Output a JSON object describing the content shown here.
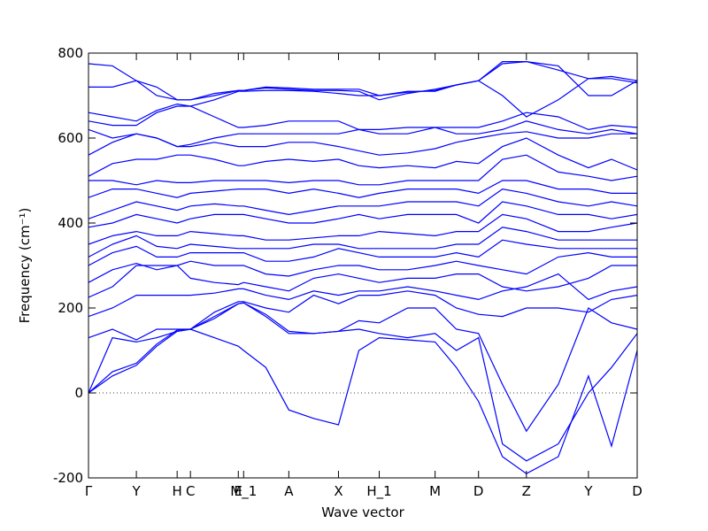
{
  "chart_data": {
    "type": "line",
    "x_label": "Wave vector",
    "y_label": "Frequency (cm⁻¹)",
    "color": "#0000ff",
    "hline": 0,
    "xlim": [
      0,
      6.19
    ],
    "ylim": [
      -200,
      800
    ],
    "yticks": [
      -200,
      0,
      200,
      400,
      600,
      800
    ],
    "xticks": [
      {
        "value": 0,
        "label": "Γ"
      },
      {
        "value": 0.54,
        "label": "Y"
      },
      {
        "value": 1.0,
        "label": "H"
      },
      {
        "value": 1.15,
        "label": "C"
      },
      {
        "value": 1.69,
        "label": "E"
      },
      {
        "value": 1.75,
        "label": "M_1"
      },
      {
        "value": 2.26,
        "label": "A"
      },
      {
        "value": 2.82,
        "label": "X"
      },
      {
        "value": 3.28,
        "label": "H_1"
      },
      {
        "value": 3.91,
        "label": "M"
      },
      {
        "value": 4.4,
        "label": "D"
      },
      {
        "value": 4.94,
        "label": "Z"
      },
      {
        "value": 5.64,
        "label": "Y"
      },
      {
        "value": 6.19,
        "label": "D"
      }
    ],
    "x": [
      0,
      0.27,
      0.54,
      0.77,
      1.0,
      1.15,
      1.42,
      1.69,
      1.75,
      2.0,
      2.26,
      2.54,
      2.82,
      3.05,
      3.28,
      3.6,
      3.91,
      4.15,
      4.4,
      4.67,
      4.94,
      5.3,
      5.64,
      5.9,
      6.19
    ],
    "series": [
      {
        "values": [
          0,
          40,
          65,
          110,
          145,
          150,
          130,
          110,
          100,
          60,
          -40,
          -60,
          -75,
          100,
          130,
          125,
          120,
          60,
          -20,
          -150,
          -190,
          -150,
          40,
          -125,
          100
        ]
      },
      {
        "values": [
          0,
          50,
          70,
          115,
          148,
          150,
          175,
          210,
          212,
          180,
          140,
          140,
          145,
          150,
          140,
          130,
          140,
          100,
          130,
          -120,
          -160,
          -120,
          0,
          60,
          140
        ]
      },
      {
        "values": [
          0,
          130,
          120,
          130,
          145,
          150,
          180,
          210,
          212,
          185,
          145,
          140,
          145,
          170,
          165,
          200,
          200,
          150,
          140,
          20,
          -90,
          20,
          200,
          165,
          150
        ]
      },
      {
        "values": [
          130,
          150,
          125,
          150,
          150,
          150,
          190,
          215,
          215,
          200,
          190,
          230,
          210,
          230,
          230,
          240,
          230,
          200,
          185,
          180,
          200,
          200,
          190,
          220,
          230
        ]
      },
      {
        "values": [
          180,
          200,
          230,
          230,
          230,
          230,
          235,
          245,
          245,
          230,
          220,
          240,
          230,
          240,
          240,
          250,
          240,
          230,
          220,
          240,
          250,
          280,
          220,
          240,
          250
        ]
      },
      {
        "values": [
          225,
          250,
          300,
          300,
          300,
          270,
          260,
          255,
          260,
          250,
          240,
          270,
          280,
          270,
          260,
          270,
          270,
          280,
          280,
          250,
          240,
          250,
          270,
          300,
          300
        ]
      },
      {
        "values": [
          260,
          290,
          305,
          290,
          300,
          310,
          300,
          300,
          300,
          280,
          275,
          290,
          300,
          300,
          290,
          290,
          300,
          310,
          300,
          290,
          280,
          320,
          330,
          320,
          320
        ]
      },
      {
        "values": [
          300,
          330,
          345,
          320,
          320,
          330,
          330,
          330,
          330,
          310,
          310,
          320,
          340,
          330,
          320,
          320,
          320,
          330,
          320,
          360,
          350,
          340,
          340,
          340,
          340
        ]
      },
      {
        "values": [
          320,
          350,
          370,
          345,
          340,
          350,
          345,
          340,
          340,
          340,
          340,
          350,
          350,
          340,
          340,
          340,
          340,
          350,
          350,
          390,
          380,
          360,
          360,
          360,
          360
        ]
      },
      {
        "values": [
          350,
          370,
          380,
          370,
          370,
          380,
          375,
          370,
          370,
          360,
          360,
          365,
          370,
          370,
          380,
          375,
          370,
          380,
          380,
          420,
          410,
          380,
          380,
          390,
          400
        ]
      },
      {
        "values": [
          390,
          400,
          420,
          410,
          400,
          410,
          420,
          420,
          420,
          410,
          400,
          400,
          410,
          420,
          410,
          420,
          420,
          420,
          400,
          450,
          440,
          420,
          420,
          410,
          420
        ]
      },
      {
        "values": [
          410,
          430,
          450,
          440,
          430,
          440,
          445,
          440,
          440,
          430,
          420,
          430,
          440,
          440,
          440,
          450,
          450,
          450,
          440,
          480,
          470,
          450,
          440,
          450,
          440
        ]
      },
      {
        "values": [
          460,
          480,
          480,
          470,
          460,
          470,
          475,
          480,
          480,
          480,
          470,
          480,
          470,
          460,
          470,
          480,
          480,
          480,
          470,
          500,
          500,
          480,
          480,
          470,
          470
        ]
      },
      {
        "values": [
          500,
          500,
          490,
          500,
          495,
          495,
          500,
          500,
          500,
          500,
          495,
          500,
          500,
          490,
          490,
          500,
          500,
          500,
          500,
          550,
          560,
          520,
          510,
          500,
          510
        ]
      },
      {
        "values": [
          510,
          540,
          550,
          550,
          560,
          560,
          550,
          535,
          535,
          545,
          550,
          545,
          550,
          535,
          530,
          535,
          530,
          545,
          540,
          580,
          600,
          560,
          530,
          550,
          525
        ]
      },
      {
        "values": [
          560,
          590,
          610,
          600,
          580,
          580,
          590,
          580,
          580,
          580,
          590,
          590,
          580,
          570,
          560,
          565,
          575,
          590,
          600,
          610,
          615,
          600,
          600,
          610,
          610
        ]
      },
      {
        "values": [
          620,
          600,
          610,
          600,
          580,
          585,
          600,
          610,
          610,
          610,
          610,
          610,
          610,
          620,
          610,
          610,
          625,
          610,
          610,
          620,
          640,
          620,
          610,
          620,
          610
        ]
      },
      {
        "values": [
          640,
          630,
          630,
          660,
          675,
          675,
          650,
          625,
          625,
          630,
          640,
          640,
          640,
          620,
          620,
          625,
          625,
          625,
          625,
          640,
          660,
          650,
          620,
          630,
          625
        ]
      },
      {
        "values": [
          660,
          650,
          640,
          665,
          680,
          675,
          690,
          710,
          710,
          712,
          712,
          710,
          705,
          700,
          700,
          710,
          710,
          725,
          735,
          700,
          650,
          690,
          740,
          740,
          730
        ]
      },
      {
        "values": [
          720,
          720,
          735,
          700,
          690,
          690,
          700,
          712,
          712,
          718,
          715,
          712,
          712,
          710,
          690,
          705,
          715,
          725,
          735,
          775,
          780,
          760,
          740,
          745,
          735
        ]
      },
      {
        "values": [
          775,
          770,
          735,
          720,
          690,
          690,
          705,
          712,
          712,
          720,
          718,
          715,
          715,
          715,
          700,
          708,
          712,
          725,
          735,
          780,
          780,
          770,
          700,
          700,
          735
        ]
      }
    ]
  }
}
